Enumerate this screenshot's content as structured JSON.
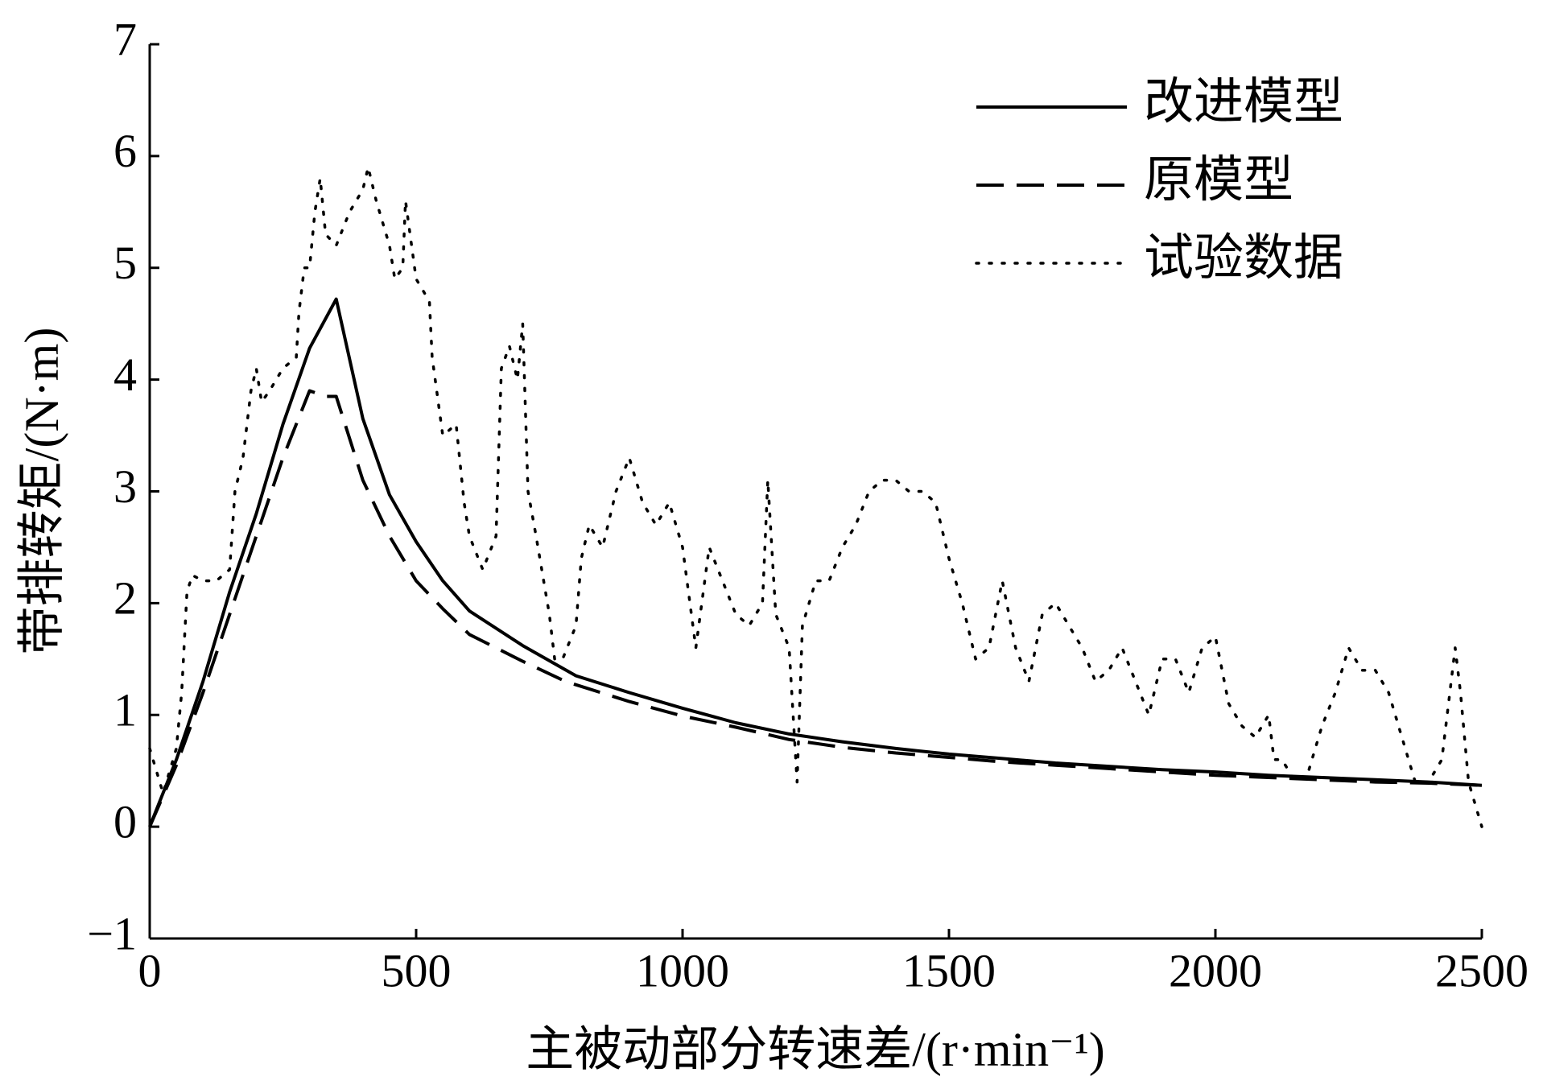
{
  "chart_data": {
    "type": "line",
    "xlabel": "主被动部分转速差/(r·min⁻¹)",
    "ylabel": "带排转矩/(N·m)",
    "xlim": [
      0,
      2500
    ],
    "ylim": [
      -1,
      7
    ],
    "xticks": [
      0,
      500,
      1000,
      1500,
      2000,
      2500
    ],
    "yticks": [
      {
        "value": -1,
        "label": "−1"
      },
      0,
      1,
      2,
      3,
      4,
      5,
      6,
      7
    ],
    "legend": "upper right",
    "series": [
      {
        "name": "改进模型",
        "color": "#000000",
        "style": "solid",
        "x": [
          0,
          50,
          100,
          150,
          200,
          250,
          300,
          350,
          400,
          450,
          500,
          550,
          600,
          700,
          800,
          900,
          1000,
          1100,
          1200,
          1300,
          1400,
          1500,
          1600,
          1700,
          1800,
          1900,
          2000,
          2100,
          2200,
          2300,
          2400,
          2500
        ],
        "values": [
          0,
          0.6,
          1.3,
          2.1,
          2.8,
          3.6,
          4.28,
          4.72,
          3.65,
          2.97,
          2.55,
          2.2,
          1.93,
          1.62,
          1.35,
          1.2,
          1.06,
          0.93,
          0.83,
          0.76,
          0.7,
          0.65,
          0.61,
          0.57,
          0.54,
          0.51,
          0.49,
          0.46,
          0.44,
          0.42,
          0.4,
          0.37
        ]
      },
      {
        "name": "原模型",
        "color": "#000000",
        "style": "dashed",
        "x": [
          0,
          50,
          100,
          150,
          200,
          250,
          300,
          330,
          350,
          400,
          450,
          500,
          550,
          600,
          700,
          780,
          900,
          1000,
          1100,
          1200,
          1300,
          1400,
          1500,
          1600,
          1700,
          1800,
          1900,
          2000,
          2100,
          2200,
          2300,
          2400,
          2500
        ],
        "values": [
          0,
          0.55,
          1.2,
          1.9,
          2.6,
          3.3,
          3.9,
          3.85,
          3.85,
          3.1,
          2.6,
          2.2,
          1.95,
          1.72,
          1.48,
          1.3,
          1.12,
          0.99,
          0.89,
          0.78,
          0.71,
          0.66,
          0.62,
          0.58,
          0.55,
          0.52,
          0.49,
          0.46,
          0.44,
          0.42,
          0.4,
          0.39,
          0.37
        ]
      },
      {
        "name": "试验数据",
        "color": "#000000",
        "style": "dotted",
        "x": [
          0,
          25,
          50,
          60,
          70,
          80,
          100,
          125,
          150,
          160,
          175,
          190,
          200,
          210,
          225,
          250,
          275,
          280,
          290,
          300,
          310,
          320,
          330,
          350,
          375,
          400,
          410,
          425,
          450,
          460,
          475,
          480,
          500,
          525,
          530,
          550,
          575,
          590,
          600,
          625,
          650,
          660,
          675,
          690,
          700,
          710,
          725,
          750,
          760,
          775,
          800,
          810,
          825,
          850,
          875,
          900,
          925,
          950,
          975,
          1000,
          1025,
          1050,
          1075,
          1100,
          1125,
          1150,
          1160,
          1175,
          1200,
          1210,
          1215,
          1225,
          1250,
          1275,
          1300,
          1325,
          1350,
          1375,
          1400,
          1425,
          1450,
          1475,
          1500,
          1525,
          1550,
          1575,
          1600,
          1625,
          1650,
          1675,
          1700,
          1725,
          1750,
          1775,
          1800,
          1825,
          1850,
          1875,
          1900,
          1925,
          1950,
          1975,
          2000,
          2025,
          2050,
          2075,
          2100,
          2110,
          2125,
          2150,
          2175,
          2200,
          2225,
          2250,
          2275,
          2300,
          2325,
          2350,
          2375,
          2400,
          2425,
          2450,
          2460,
          2475,
          2500
        ],
        "values": [
          0.7,
          0.3,
          0.7,
          1.2,
          2.1,
          2.25,
          2.2,
          2.2,
          2.3,
          3.0,
          3.3,
          3.9,
          4.1,
          3.8,
          3.9,
          4.1,
          4.2,
          4.6,
          5.0,
          5.0,
          5.5,
          5.8,
          5.3,
          5.2,
          5.5,
          5.7,
          5.9,
          5.6,
          5.2,
          4.9,
          5.0,
          5.6,
          4.9,
          4.7,
          4.2,
          3.5,
          3.6,
          2.9,
          2.6,
          2.3,
          2.6,
          4.1,
          4.3,
          4.0,
          4.5,
          3.0,
          2.6,
          1.9,
          1.5,
          1.5,
          1.8,
          2.4,
          2.7,
          2.5,
          3.0,
          3.3,
          2.9,
          2.7,
          2.9,
          2.5,
          1.6,
          2.5,
          2.2,
          1.9,
          1.8,
          2.0,
          3.1,
          1.9,
          1.6,
          0.8,
          0.4,
          1.8,
          2.2,
          2.2,
          2.5,
          2.7,
          3.0,
          3.1,
          3.1,
          3.0,
          3.0,
          2.9,
          2.4,
          2.0,
          1.5,
          1.6,
          2.2,
          1.6,
          1.3,
          1.9,
          2.0,
          1.8,
          1.6,
          1.3,
          1.4,
          1.6,
          1.3,
          1.0,
          1.5,
          1.5,
          1.2,
          1.6,
          1.7,
          1.1,
          0.9,
          0.8,
          1.0,
          0.6,
          0.6,
          0.4,
          0.5,
          0.9,
          1.2,
          1.6,
          1.4,
          1.4,
          1.2,
          0.8,
          0.4,
          0.4,
          0.6,
          1.6,
          1.2,
          0.4,
          0.0
        ]
      }
    ]
  }
}
